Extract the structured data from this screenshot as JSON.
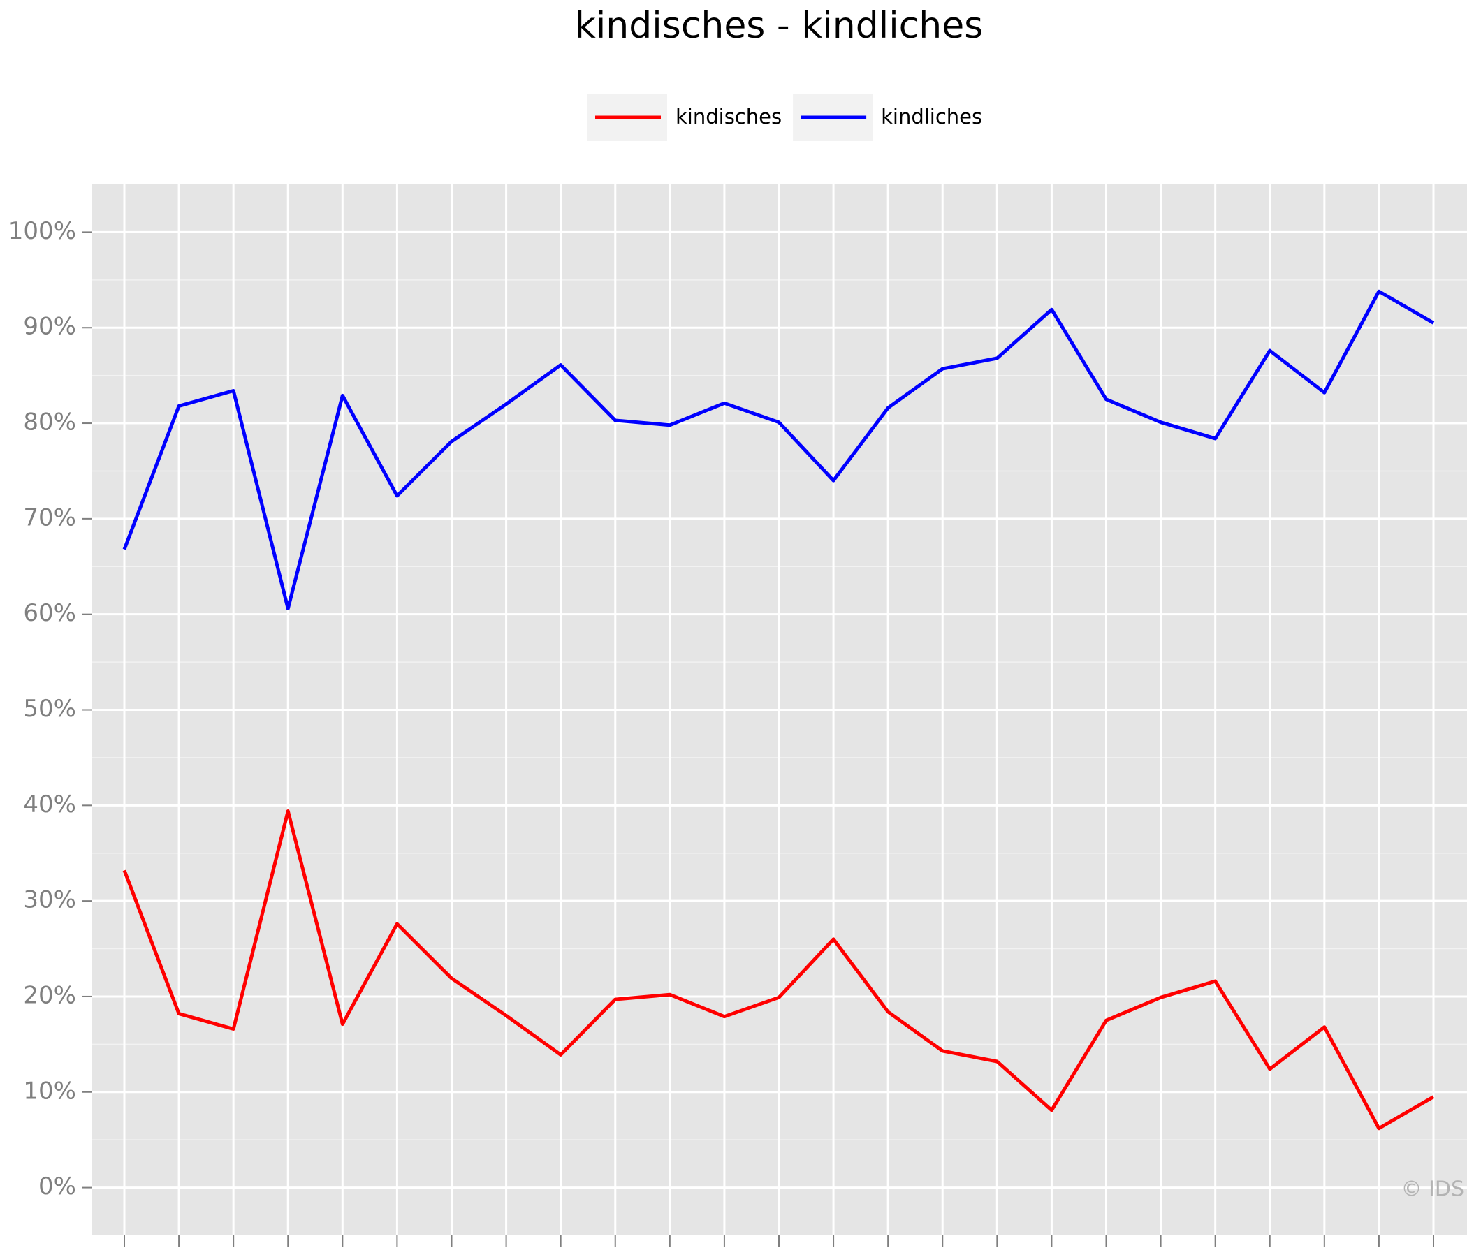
{
  "chart_data": {
    "type": "line",
    "title": "kindisches - kindliches",
    "categories": [
      null,
      null,
      null,
      null,
      null,
      null,
      null,
      null,
      null,
      null,
      null,
      null,
      null,
      null,
      null,
      null,
      null,
      null,
      null,
      null,
      null,
      null,
      null,
      null,
      null
    ],
    "series": [
      {
        "name": "kindisches",
        "color": "#ff0000",
        "values": [
          33.2,
          18.2,
          16.6,
          39.4,
          17.1,
          27.6,
          21.9,
          18.0,
          13.9,
          19.7,
          20.2,
          17.9,
          19.9,
          26.0,
          18.4,
          14.3,
          13.2,
          8.1,
          17.5,
          19.9,
          21.6,
          12.4,
          16.8,
          6.2,
          9.5
        ]
      },
      {
        "name": "kindliches",
        "color": "#0000ff",
        "values": [
          66.8,
          81.8,
          83.4,
          60.6,
          82.9,
          72.4,
          78.1,
          82.0,
          86.1,
          80.3,
          79.8,
          82.1,
          80.1,
          74.0,
          81.6,
          85.7,
          86.8,
          91.9,
          82.5,
          80.1,
          78.4,
          87.6,
          83.2,
          93.8,
          90.5
        ]
      }
    ],
    "ylim": [
      -5,
      105
    ],
    "yticks": [
      {
        "value": 0,
        "label": "0%"
      },
      {
        "value": 10,
        "label": "10%"
      },
      {
        "value": 20,
        "label": "20%"
      },
      {
        "value": 30,
        "label": "30%"
      },
      {
        "value": 40,
        "label": "40%"
      },
      {
        "value": 50,
        "label": "50%"
      },
      {
        "value": 60,
        "label": "60%"
      },
      {
        "value": 70,
        "label": "70%"
      },
      {
        "value": 80,
        "label": "80%"
      },
      {
        "value": 90,
        "label": "90%"
      },
      {
        "value": 100,
        "label": "100%"
      }
    ],
    "grid": true,
    "legend": "top",
    "annotation": "© IDS"
  }
}
